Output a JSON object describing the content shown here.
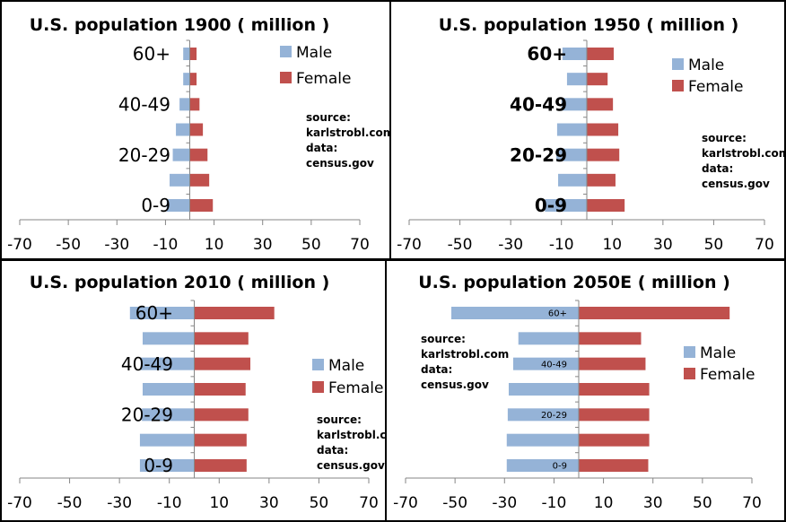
{
  "chart_data": [
    {
      "type": "bar",
      "orientation": "horizontal",
      "title": "U.S. population 1900 ( million )",
      "categories": [
        "0-9",
        "",
        "20-29",
        "",
        "40-49",
        "",
        "60+"
      ],
      "series": [
        {
          "name": "Male",
          "values": [
            -9.5,
            -8.3,
            -7.0,
            -5.7,
            -4.2,
            -2.7,
            -2.7
          ]
        },
        {
          "name": "Female",
          "values": [
            9.5,
            8.0,
            7.3,
            5.4,
            4.0,
            2.8,
            2.8
          ]
        }
      ],
      "xlim": [
        -70,
        70
      ],
      "xticks": [
        "-70",
        "-50",
        "-30",
        "-10",
        "10",
        "30",
        "50",
        "70"
      ],
      "legend": "top-right",
      "note": [
        "source:",
        "karlstrobl.com",
        "data:",
        "census.gov"
      ]
    },
    {
      "type": "bar",
      "orientation": "horizontal",
      "title": "U.S. population 1950 ( million )",
      "categories": [
        "0-9",
        "",
        "20-29",
        "",
        "40-49",
        "",
        "60+"
      ],
      "series": [
        {
          "name": "Male",
          "values": [
            -16.5,
            -11.3,
            -12.0,
            -11.7,
            -10.0,
            -7.8,
            -9.6
          ]
        },
        {
          "name": "Female",
          "values": [
            14.9,
            11.3,
            12.8,
            12.4,
            10.3,
            8.2,
            10.6
          ]
        }
      ],
      "xlim": [
        -70,
        70
      ],
      "xticks": [
        "-70",
        "-50",
        "-30",
        "-10",
        "10",
        "30",
        "50",
        "70"
      ],
      "legend": "top-right",
      "note": [
        "source:",
        "karlstrobl.com",
        "data:",
        "census.gov"
      ]
    },
    {
      "type": "bar",
      "orientation": "horizontal",
      "title": "U.S. population 2010 ( million )",
      "categories": [
        "0-9",
        "",
        "20-29",
        "",
        "40-49",
        "",
        "60+"
      ],
      "series": [
        {
          "name": "Male",
          "values": [
            -21.8,
            -21.8,
            -21.0,
            -20.7,
            -21.5,
            -20.7,
            -25.8
          ]
        },
        {
          "name": "Female",
          "values": [
            21.0,
            21.0,
            21.7,
            20.6,
            22.5,
            21.7,
            32.1
          ]
        }
      ],
      "xlim": [
        -70,
        70
      ],
      "xticks": [
        "-70",
        "-50",
        "-30",
        "-10",
        "10",
        "30",
        "50",
        "70"
      ],
      "legend": "right",
      "note": [
        "source:",
        "karlstrobl.co",
        "data:",
        "census.gov"
      ]
    },
    {
      "type": "bar",
      "orientation": "horizontal",
      "title": "U.S. population 2050E ( million )",
      "categories": [
        "0-9",
        "",
        "20-29",
        "",
        "40-49",
        "",
        "60+"
      ],
      "series": [
        {
          "name": "Male",
          "values": [
            -29.1,
            -29.1,
            -28.7,
            -28.3,
            -26.5,
            -24.4,
            -51.5
          ]
        },
        {
          "name": "Female",
          "values": [
            28.1,
            28.5,
            28.5,
            28.5,
            27.0,
            25.2,
            61.0
          ]
        }
      ],
      "xlim": [
        -70,
        70
      ],
      "xticks": [
        "-70",
        "-50",
        "-30",
        "-10",
        "10",
        "30",
        "50",
        "70"
      ],
      "legend": "right",
      "note": [
        "source:",
        "karlstrobl.com",
        "data:",
        "census.gov"
      ]
    }
  ],
  "colors": {
    "Male": "#95b3d7",
    "Female": "#c0504d"
  }
}
